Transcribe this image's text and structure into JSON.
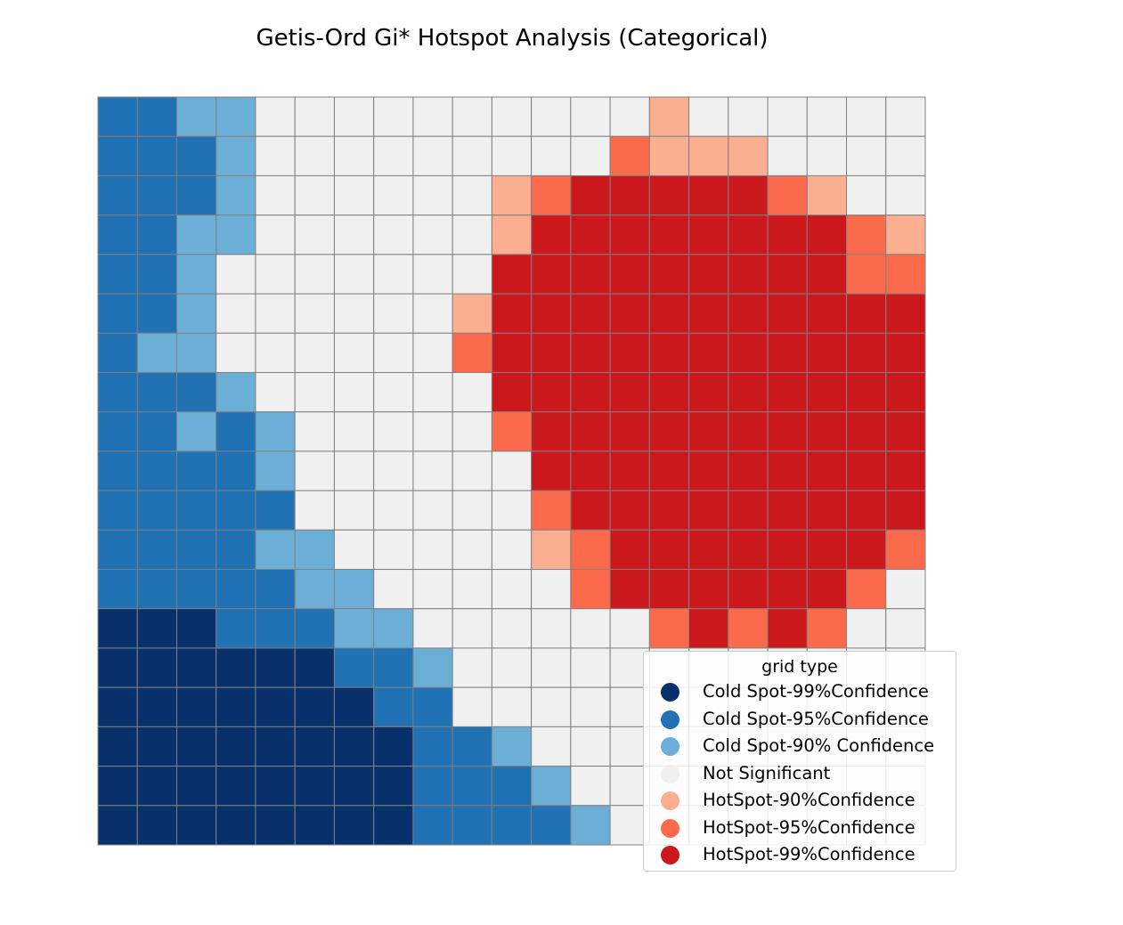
{
  "chart_data": {
    "type": "heatmap",
    "title": "Getis-Ord Gi* Hotspot Analysis (Categorical)",
    "xlabel": "",
    "ylabel": "",
    "grid": true,
    "legend_title": "grid type",
    "legend_placement": "bottom-right",
    "categories": [
      {
        "label": "Cold Spot-99%Confidence",
        "color": "#08306b"
      },
      {
        "label": "Cold Spot-95%Confidence",
        "color": "#2171b5"
      },
      {
        "label": "Cold Spot-90% Confidence",
        "color": "#6baed6"
      },
      {
        "label": "Not Significant",
        "color": "#f0f0f0"
      },
      {
        "label": "HotSpot-90%Confidence",
        "color": "#fcae91"
      },
      {
        "label": "HotSpot-95%Confidence",
        "color": "#fb6a4a"
      },
      {
        "label": "HotSpot-99%Confidence",
        "color": "#cb181d"
      }
    ],
    "cells": [
      [
        1,
        1,
        2,
        2,
        3,
        3,
        3,
        3,
        3,
        3,
        3,
        3,
        3,
        3,
        4,
        3,
        3,
        3,
        3,
        3,
        3
      ],
      [
        1,
        1,
        1,
        2,
        3,
        3,
        3,
        3,
        3,
        3,
        3,
        3,
        3,
        5,
        4,
        4,
        4,
        3,
        3,
        3,
        3
      ],
      [
        1,
        1,
        1,
        2,
        3,
        3,
        3,
        3,
        3,
        3,
        4,
        5,
        6,
        6,
        6,
        6,
        6,
        5,
        4,
        3,
        3
      ],
      [
        1,
        1,
        2,
        2,
        3,
        3,
        3,
        3,
        3,
        3,
        4,
        6,
        6,
        6,
        6,
        6,
        6,
        6,
        6,
        5,
        4
      ],
      [
        1,
        1,
        2,
        3,
        3,
        3,
        3,
        3,
        3,
        3,
        6,
        6,
        6,
        6,
        6,
        6,
        6,
        6,
        6,
        5,
        5
      ],
      [
        1,
        1,
        2,
        3,
        3,
        3,
        3,
        3,
        3,
        4,
        6,
        6,
        6,
        6,
        6,
        6,
        6,
        6,
        6,
        6,
        6
      ],
      [
        1,
        2,
        2,
        3,
        3,
        3,
        3,
        3,
        3,
        5,
        6,
        6,
        6,
        6,
        6,
        6,
        6,
        6,
        6,
        6,
        6
      ],
      [
        1,
        1,
        1,
        2,
        3,
        3,
        3,
        3,
        3,
        3,
        6,
        6,
        6,
        6,
        6,
        6,
        6,
        6,
        6,
        6,
        6
      ],
      [
        1,
        1,
        2,
        1,
        2,
        3,
        3,
        3,
        3,
        3,
        5,
        6,
        6,
        6,
        6,
        6,
        6,
        6,
        6,
        6,
        6
      ],
      [
        1,
        1,
        1,
        1,
        2,
        3,
        3,
        3,
        3,
        3,
        3,
        6,
        6,
        6,
        6,
        6,
        6,
        6,
        6,
        6,
        6
      ],
      [
        1,
        1,
        1,
        1,
        1,
        3,
        3,
        3,
        3,
        3,
        3,
        5,
        6,
        6,
        6,
        6,
        6,
        6,
        6,
        6,
        6
      ],
      [
        1,
        1,
        1,
        1,
        2,
        2,
        3,
        3,
        3,
        3,
        3,
        4,
        5,
        6,
        6,
        6,
        6,
        6,
        6,
        6,
        5
      ],
      [
        1,
        1,
        1,
        1,
        1,
        2,
        2,
        3,
        3,
        3,
        3,
        3,
        5,
        6,
        6,
        6,
        6,
        6,
        6,
        5,
        3
      ],
      [
        0,
        0,
        0,
        1,
        1,
        1,
        2,
        2,
        3,
        3,
        3,
        3,
        3,
        3,
        5,
        6,
        5,
        6,
        5,
        3,
        3
      ],
      [
        0,
        0,
        0,
        0,
        0,
        0,
        1,
        1,
        2,
        3,
        3,
        3,
        3,
        3,
        3,
        3,
        3,
        3,
        3,
        3,
        3
      ],
      [
        0,
        0,
        0,
        0,
        0,
        0,
        0,
        1,
        1,
        3,
        3,
        3,
        3,
        3,
        3,
        3,
        3,
        3,
        3,
        3,
        3
      ],
      [
        0,
        0,
        0,
        0,
        0,
        0,
        0,
        0,
        1,
        1,
        2,
        3,
        3,
        3,
        3,
        3,
        3,
        3,
        3,
        3,
        3
      ],
      [
        0,
        0,
        0,
        0,
        0,
        0,
        0,
        0,
        1,
        1,
        1,
        2,
        3,
        3,
        3,
        3,
        3,
        3,
        3,
        3,
        3
      ],
      [
        0,
        0,
        0,
        0,
        0,
        0,
        0,
        0,
        1,
        1,
        1,
        1,
        2,
        3,
        3,
        3,
        3,
        3,
        3,
        3,
        3
      ]
    ]
  }
}
